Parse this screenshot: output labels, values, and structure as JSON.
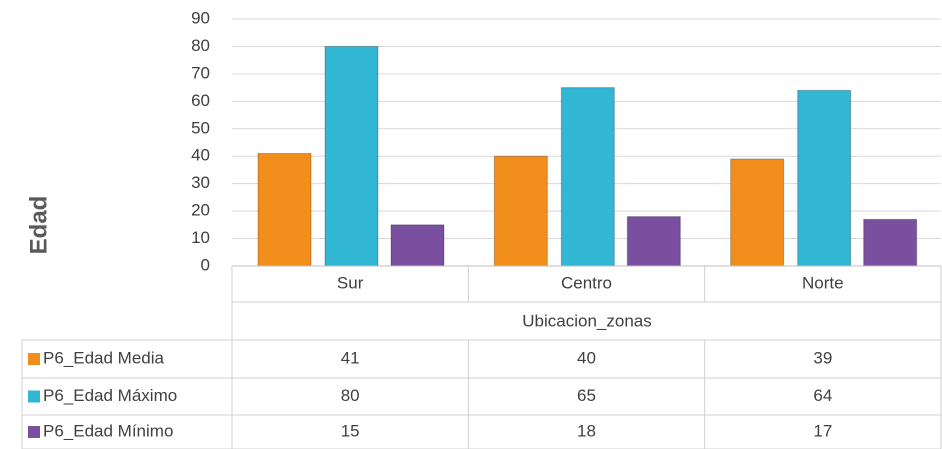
{
  "chart_data": {
    "type": "bar",
    "y_label": "Edad",
    "x_label": "Ubicacion_zonas",
    "categories": [
      "Sur",
      "Centro",
      "Norte"
    ],
    "series": [
      {
        "name": "P6_Edad Media",
        "color": "#f28e1c",
        "values": [
          41,
          40,
          39
        ]
      },
      {
        "name": "P6_Edad Máximo",
        "color": "#31b7d4",
        "values": [
          80,
          65,
          64
        ]
      },
      {
        "name": "P6_Edad Mínimo",
        "color": "#7a4fa0",
        "values": [
          15,
          18,
          17
        ]
      }
    ],
    "ylim": [
      0,
      90
    ],
    "yticks": [
      0,
      10,
      20,
      30,
      40,
      50,
      60,
      70,
      80,
      90
    ],
    "grid": true
  }
}
